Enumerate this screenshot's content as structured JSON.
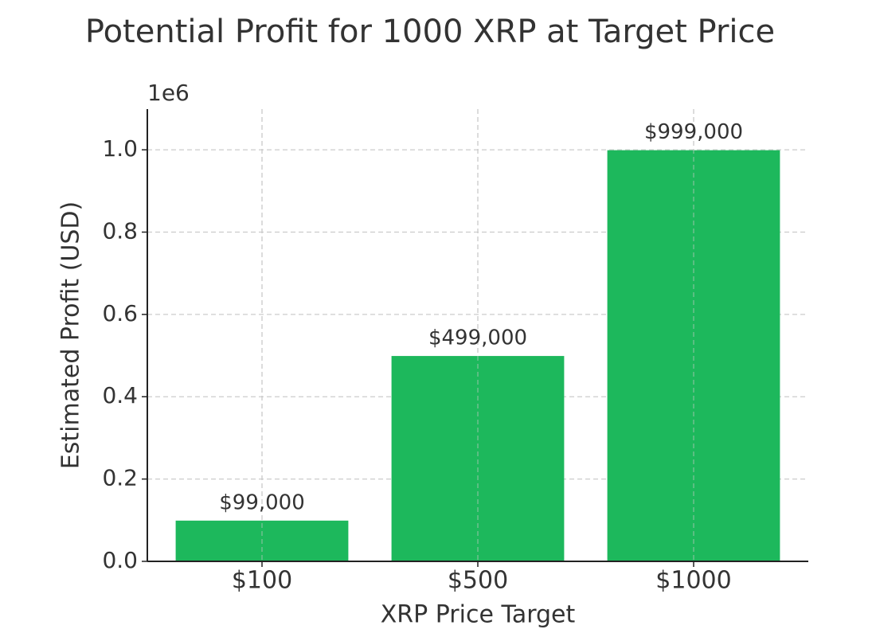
{
  "chart_data": {
    "type": "bar",
    "title": "Potential Profit for 1000 XRP at Target Price",
    "xlabel": "XRP Price Target",
    "ylabel": "Estimated Profit (USD)",
    "y_offset_label": "1e6",
    "categories": [
      "$100",
      "$500",
      "$1000"
    ],
    "values": [
      99000,
      499000,
      999000
    ],
    "value_labels": [
      "$99,000",
      "$499,000",
      "$999,000"
    ],
    "color": "#1db85c",
    "ylim": [
      0,
      1098900
    ],
    "yticks": [
      {
        "value": 0,
        "label": "0.0"
      },
      {
        "value": 200000,
        "label": "0.2"
      },
      {
        "value": 400000,
        "label": "0.4"
      },
      {
        "value": 600000,
        "label": "0.6"
      },
      {
        "value": 800000,
        "label": "0.8"
      },
      {
        "value": 1000000,
        "label": "1.0"
      }
    ],
    "grid": true
  }
}
